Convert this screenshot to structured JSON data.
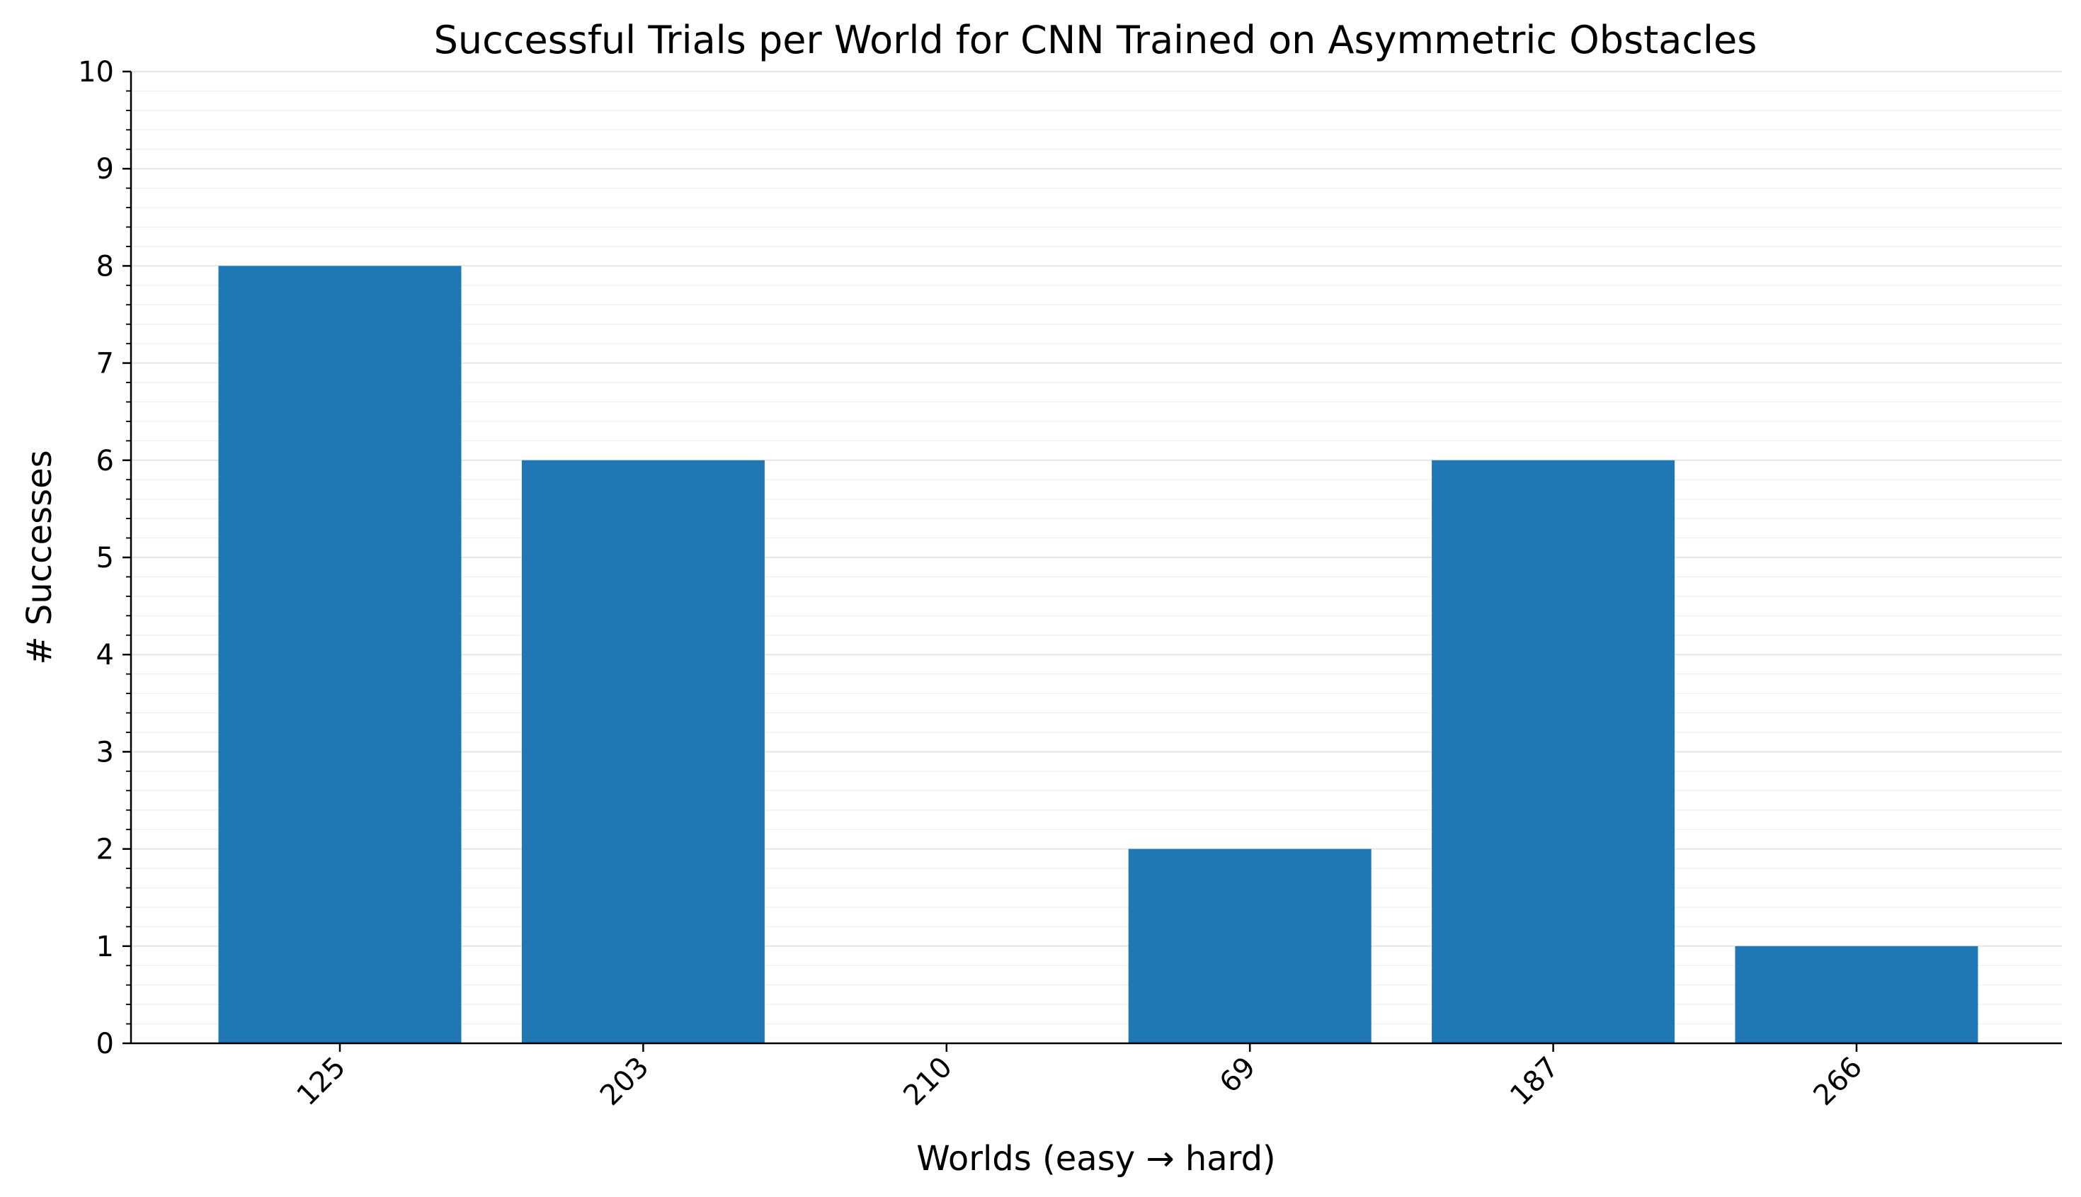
{
  "chart_data": {
    "type": "bar",
    "title": "Successful Trials per World for CNN Trained on Asymmetric Obstacles",
    "xlabel": "Worlds (easy → hard)",
    "ylabel": "# Successes",
    "categories": [
      "125",
      "203",
      "210",
      "69",
      "187",
      "266"
    ],
    "values": [
      8,
      6,
      0,
      2,
      6,
      1
    ],
    "ylim": [
      0,
      10
    ],
    "yticks": [
      0,
      1,
      2,
      3,
      4,
      5,
      6,
      7,
      8,
      9,
      10
    ],
    "grid": true,
    "bar_color": "#1f77b4"
  }
}
